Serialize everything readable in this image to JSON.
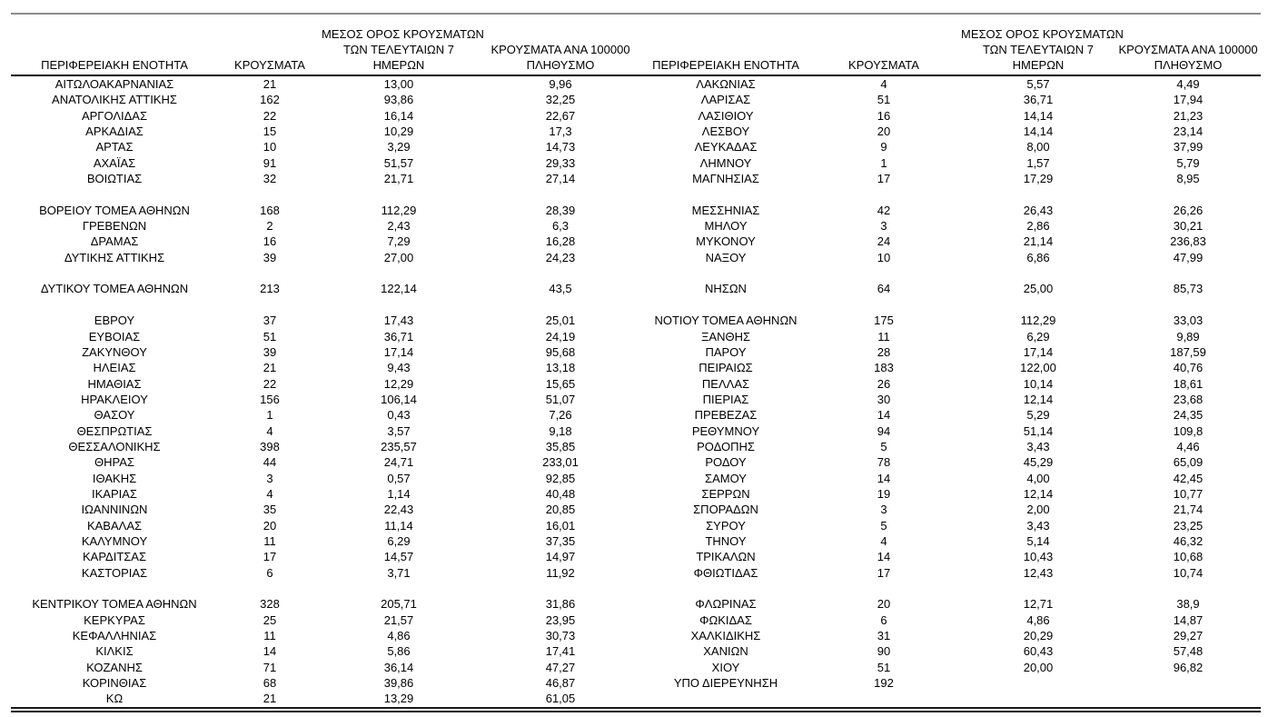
{
  "columns": {
    "region": "ΠΕΡΙΦΕΡΕΙΑΚΗ ΕΝΟΤΗΤΑ",
    "cases": "ΚΡΟΥΣΜΑΤΑ",
    "avg7_line1": "ΜΕΣΟΣ ΟΡΟΣ ΚΡΟΥΣΜΑΤΩΝ",
    "avg7_line2": "ΤΩΝ ΤΕΛΕΥΤΑΙΩΝ 7",
    "avg7_line3": "ΗΜΕΡΩΝ",
    "per100k_line1": "ΚΡΟΥΣΜΑΤΑ ΑΝΑ 100000",
    "per100k_line2": "ΠΛΗΘΥΣΜΟ"
  },
  "left_table": {
    "rows": [
      [
        "ΑΙΤΩΛΟΑΚΑΡΝΑΝΙΑΣ",
        "21",
        "13,00",
        "9,96"
      ],
      [
        "ΑΝΑΤΟΛΙΚΗΣ ΑΤΤΙΚΗΣ",
        "162",
        "93,86",
        "32,25"
      ],
      [
        "ΑΡΓΟΛΙΔΑΣ",
        "22",
        "16,14",
        "22,67"
      ],
      [
        "ΑΡΚΑΔΙΑΣ",
        "15",
        "10,29",
        "17,3"
      ],
      [
        "ΑΡΤΑΣ",
        "10",
        "3,29",
        "14,73"
      ],
      [
        "ΑΧΑΪΑΣ",
        "91",
        "51,57",
        "29,33"
      ],
      [
        "ΒΟΙΩΤΙΑΣ",
        "32",
        "21,71",
        "27,14"
      ],
      [
        "",
        "",
        "",
        ""
      ],
      [
        "ΒΟΡΕΙΟΥ ΤΟΜΕΑ ΑΘΗΝΩΝ",
        "168",
        "112,29",
        "28,39"
      ],
      [
        "ΓΡΕΒΕΝΩΝ",
        "2",
        "2,43",
        "6,3"
      ],
      [
        "ΔΡΑΜΑΣ",
        "16",
        "7,29",
        "16,28"
      ],
      [
        "ΔΥΤΙΚΗΣ ΑΤΤΙΚΗΣ",
        "39",
        "27,00",
        "24,23"
      ],
      [
        "",
        "",
        "",
        ""
      ],
      [
        "ΔΥΤΙΚΟΥ ΤΟΜΕΑ ΑΘΗΝΩΝ",
        "213",
        "122,14",
        "43,5"
      ],
      [
        "",
        "",
        "",
        ""
      ],
      [
        "ΕΒΡΟΥ",
        "37",
        "17,43",
        "25,01"
      ],
      [
        "ΕΥΒΟΙΑΣ",
        "51",
        "36,71",
        "24,19"
      ],
      [
        "ΖΑΚΥΝΘΟΥ",
        "39",
        "17,14",
        "95,68"
      ],
      [
        "ΗΛΕΙΑΣ",
        "21",
        "9,43",
        "13,18"
      ],
      [
        "ΗΜΑΘΙΑΣ",
        "22",
        "12,29",
        "15,65"
      ],
      [
        "ΗΡΑΚΛΕΙΟΥ",
        "156",
        "106,14",
        "51,07"
      ],
      [
        "ΘΑΣΟΥ",
        "1",
        "0,43",
        "7,26"
      ],
      [
        "ΘΕΣΠΡΩΤΙΑΣ",
        "4",
        "3,57",
        "9,18"
      ],
      [
        "ΘΕΣΣΑΛΟΝΙΚΗΣ",
        "398",
        "235,57",
        "35,85"
      ],
      [
        "ΘΗΡΑΣ",
        "44",
        "24,71",
        "233,01"
      ],
      [
        "ΙΘΑΚΗΣ",
        "3",
        "0,57",
        "92,85"
      ],
      [
        "ΙΚΑΡΙΑΣ",
        "4",
        "1,14",
        "40,48"
      ],
      [
        "ΙΩΑΝΝΙΝΩΝ",
        "35",
        "22,43",
        "20,85"
      ],
      [
        "ΚΑΒΑΛΑΣ",
        "20",
        "11,14",
        "16,01"
      ],
      [
        "ΚΑΛΥΜΝΟΥ",
        "11",
        "6,29",
        "37,35"
      ],
      [
        "ΚΑΡΔΙΤΣΑΣ",
        "17",
        "14,57",
        "14,97"
      ],
      [
        "ΚΑΣΤΟΡΙΑΣ",
        "6",
        "3,71",
        "11,92"
      ],
      [
        "",
        "",
        "",
        ""
      ],
      [
        "ΚΕΝΤΡΙΚΟΥ ΤΟΜΕΑ ΑΘΗΝΩΝ",
        "328",
        "205,71",
        "31,86"
      ],
      [
        "ΚΕΡΚΥΡΑΣ",
        "25",
        "21,57",
        "23,95"
      ],
      [
        "ΚΕΦΑΛΛΗΝΙΑΣ",
        "11",
        "4,86",
        "30,73"
      ],
      [
        "ΚΙΛΚΙΣ",
        "14",
        "5,86",
        "17,41"
      ],
      [
        "ΚΟΖΑΝΗΣ",
        "71",
        "36,14",
        "47,27"
      ],
      [
        "ΚΟΡΙΝΘΙΑΣ",
        "68",
        "39,86",
        "46,87"
      ],
      [
        "ΚΩ",
        "21",
        "13,29",
        "61,05"
      ]
    ]
  },
  "right_table": {
    "rows": [
      [
        "ΛΑΚΩΝΙΑΣ",
        "4",
        "5,57",
        "4,49"
      ],
      [
        "ΛΑΡΙΣΑΣ",
        "51",
        "36,71",
        "17,94"
      ],
      [
        "ΛΑΣΙΘΙΟΥ",
        "16",
        "14,14",
        "21,23"
      ],
      [
        "ΛΕΣΒΟΥ",
        "20",
        "14,14",
        "23,14"
      ],
      [
        "ΛΕΥΚΑΔΑΣ",
        "9",
        "8,00",
        "37,99"
      ],
      [
        "ΛΗΜΝΟΥ",
        "1",
        "1,57",
        "5,79"
      ],
      [
        "ΜΑΓΝΗΣΙΑΣ",
        "17",
        "17,29",
        "8,95"
      ],
      [
        "",
        "",
        "",
        ""
      ],
      [
        "ΜΕΣΣΗΝΙΑΣ",
        "42",
        "26,43",
        "26,26"
      ],
      [
        "ΜΗΛΟΥ",
        "3",
        "2,86",
        "30,21"
      ],
      [
        "ΜΥΚΟΝΟΥ",
        "24",
        "21,14",
        "236,83"
      ],
      [
        "ΝΑΞΟΥ",
        "10",
        "6,86",
        "47,99"
      ],
      [
        "",
        "",
        "",
        ""
      ],
      [
        "ΝΗΣΩΝ",
        "64",
        "25,00",
        "85,73"
      ],
      [
        "",
        "",
        "",
        ""
      ],
      [
        "ΝΟΤΙΟΥ ΤΟΜΕΑ ΑΘΗΝΩΝ",
        "175",
        "112,29",
        "33,03"
      ],
      [
        "ΞΑΝΘΗΣ",
        "11",
        "6,29",
        "9,89"
      ],
      [
        "ΠΑΡΟΥ",
        "28",
        "17,14",
        "187,59"
      ],
      [
        "ΠΕΙΡΑΙΩΣ",
        "183",
        "122,00",
        "40,76"
      ],
      [
        "ΠΕΛΛΑΣ",
        "26",
        "10,14",
        "18,61"
      ],
      [
        "ΠΙΕΡΙΑΣ",
        "30",
        "12,14",
        "23,68"
      ],
      [
        "ΠΡΕΒΕΖΑΣ",
        "14",
        "5,29",
        "24,35"
      ],
      [
        "ΡΕΘΥΜΝΟΥ",
        "94",
        "51,14",
        "109,8"
      ],
      [
        "ΡΟΔΟΠΗΣ",
        "5",
        "3,43",
        "4,46"
      ],
      [
        "ΡΟΔΟΥ",
        "78",
        "45,29",
        "65,09"
      ],
      [
        "ΣΑΜΟΥ",
        "14",
        "4,00",
        "42,45"
      ],
      [
        "ΣΕΡΡΩΝ",
        "19",
        "12,14",
        "10,77"
      ],
      [
        "ΣΠΟΡΑΔΩΝ",
        "3",
        "2,00",
        "21,74"
      ],
      [
        "ΣΥΡΟΥ",
        "5",
        "3,43",
        "23,25"
      ],
      [
        "ΤΗΝΟΥ",
        "4",
        "5,14",
        "46,32"
      ],
      [
        "ΤΡΙΚΑΛΩΝ",
        "14",
        "10,43",
        "10,68"
      ],
      [
        "ΦΘΙΩΤΙΔΑΣ",
        "17",
        "12,43",
        "10,74"
      ],
      [
        "",
        "",
        "",
        ""
      ],
      [
        "ΦΛΩΡΙΝΑΣ",
        "20",
        "12,71",
        "38,9"
      ],
      [
        "ΦΩΚΙΔΑΣ",
        "6",
        "4,86",
        "14,87"
      ],
      [
        "ΧΑΛΚΙΔΙΚΗΣ",
        "31",
        "20,29",
        "29,27"
      ],
      [
        "ΧΑΝΙΩΝ",
        "90",
        "60,43",
        "57,48"
      ],
      [
        "ΧΙΟΥ",
        "51",
        "20,00",
        "96,82"
      ],
      [
        "ΥΠΟ ΔΙΕΡΕΥΝΗΣΗ",
        "192",
        "",
        ""
      ],
      [
        "",
        "",
        "",
        ""
      ]
    ]
  }
}
